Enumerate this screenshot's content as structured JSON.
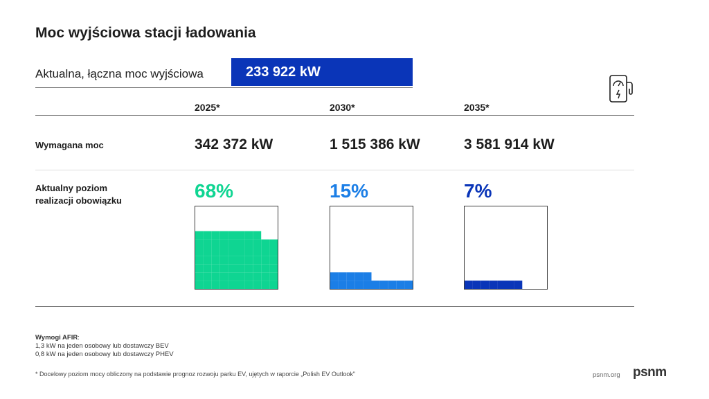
{
  "page": {
    "title": "Moc wyjściowa stacji ładowania",
    "current_label": "Aktualna, łączna moc wyjściowa",
    "current_value": "233 922 kW",
    "row_required_label": "Wymagana moc",
    "row_level_label_line1": "Aktualny poziom",
    "row_level_label_line2": "realizacji obowiązku",
    "notes_title": "Wymogi AFIR",
    "notes_title_suffix": ":",
    "notes_line1": "1,3 kW na jeden osobowy lub dostawczy BEV",
    "notes_line2": "0,8 kW na jeden osobowy lub dostawczy PHEV",
    "footnote": "* Docelowy poziom mocy obliczony na podstawie prognoz rozwoju parku EV, ujętych w raporcie „Polish EV Outlook\"",
    "site": "psnm.org",
    "logo": "psnm",
    "icons": [
      "ev-charger-icon"
    ]
  },
  "chart_data": {
    "type": "table",
    "columns": [
      {
        "year": "2025*",
        "required": "342 372 kW",
        "percent_label": "68%",
        "percent": 68,
        "color": "#0fd592"
      },
      {
        "year": "2030*",
        "required": "1 515 386 kW",
        "percent_label": "15%",
        "percent": 15,
        "color": "#1b7ee6"
      },
      {
        "year": "2035*",
        "required": "3 581 914 kW",
        "percent_label": "7%",
        "percent": 7,
        "color": "#0a35b8"
      }
    ],
    "grid": "10x10",
    "colors": {
      "accent_blue": "#0a35b8",
      "line_gray": "#777777"
    }
  }
}
